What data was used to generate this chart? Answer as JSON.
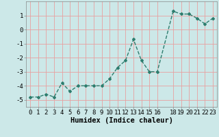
{
  "x": [
    0,
    1,
    2,
    3,
    4,
    5,
    6,
    7,
    8,
    9,
    10,
    11,
    12,
    13,
    14,
    15,
    16,
    18,
    19,
    20,
    21,
    22,
    23
  ],
  "y": [
    -4.8,
    -4.8,
    -4.6,
    -4.8,
    -3.8,
    -4.4,
    -4.0,
    -4.0,
    -4.0,
    -4.0,
    -3.5,
    -2.7,
    -2.2,
    -0.7,
    -2.2,
    -3.0,
    -3.0,
    1.3,
    1.1,
    1.1,
    0.8,
    0.4,
    0.8
  ],
  "line_color": "#2e7d6e",
  "marker": "D",
  "marker_size": 2.0,
  "bg_color": "#cce8e8",
  "grid_color": "#e8a0a0",
  "xlabel": "Humidex (Indice chaleur)",
  "xlim": [
    -0.5,
    23.5
  ],
  "ylim": [
    -5.5,
    2.0
  ],
  "xticks": [
    0,
    1,
    2,
    3,
    4,
    5,
    6,
    7,
    8,
    9,
    10,
    11,
    12,
    13,
    14,
    15,
    16,
    18,
    19,
    20,
    21,
    22,
    23
  ],
  "yticks": [
    -5,
    -4,
    -3,
    -2,
    -1,
    0,
    1
  ],
  "xlabel_fontsize": 7.5,
  "tick_fontsize": 6.5,
  "line_width": 1.0
}
